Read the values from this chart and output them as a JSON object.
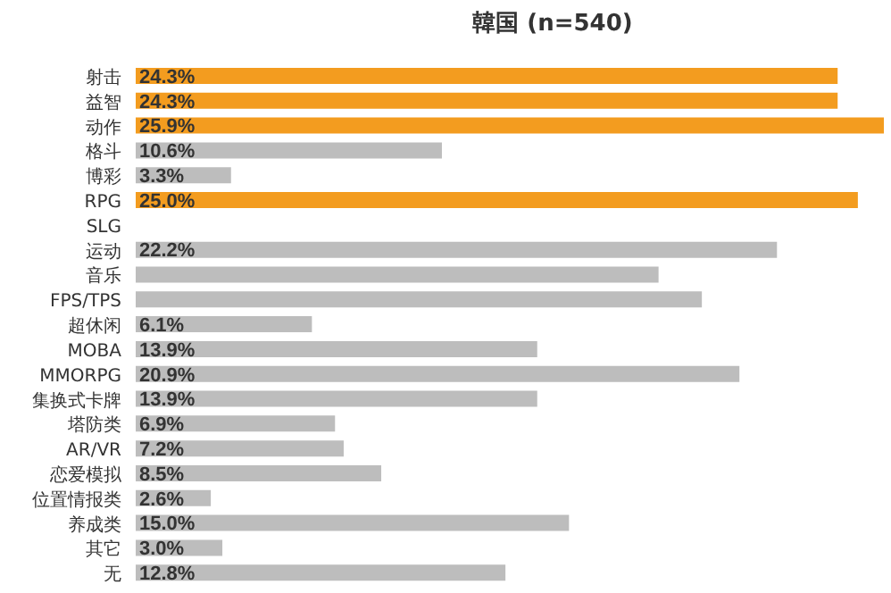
{
  "chart_data": {
    "type": "bar",
    "orientation": "horizontal",
    "title": "韓国   (n=540)",
    "categories": [
      "射击",
      "益智",
      "动作",
      "格斗",
      "博彩",
      "RPG",
      "SLG",
      "运动",
      "音乐",
      "FPS/TPS",
      "超休闲",
      "MOBA",
      "MMORPG",
      "集换式卡牌",
      "塔防类",
      "AR/VR",
      "恋爱模拟",
      "位置情报类",
      "养成类",
      "其它",
      "无"
    ],
    "values": [
      24.3,
      24.3,
      25.9,
      10.6,
      3.3,
      25.0,
      null,
      22.2,
      18.1,
      19.6,
      6.1,
      13.9,
      20.9,
      13.9,
      6.9,
      7.2,
      8.5,
      2.6,
      15.0,
      3.0,
      12.8
    ],
    "value_labels": [
      "24.3%",
      "24.3%",
      "25.9%",
      "10.6%",
      "3.3%",
      "25.0%",
      null,
      "22.2%",
      null,
      null,
      "6.1%",
      "13.9%",
      "20.9%",
      "13.9%",
      "6.9%",
      "7.2%",
      "8.5%",
      "2.6%",
      "15.0%",
      "3.0%",
      "12.8%"
    ],
    "colors": [
      "#f39c1f",
      "#f39c1f",
      "#f39c1f",
      "#bdbdbd",
      "#bdbdbd",
      "#f39c1f",
      "#bdbdbd",
      "#bdbdbd",
      "#bdbdbd",
      "#bdbdbd",
      "#bdbdbd",
      "#bdbdbd",
      "#bdbdbd",
      "#bdbdbd",
      "#bdbdbd",
      "#bdbdbd",
      "#bdbdbd",
      "#bdbdbd",
      "#bdbdbd",
      "#bdbdbd",
      "#bdbdbd"
    ]
  }
}
